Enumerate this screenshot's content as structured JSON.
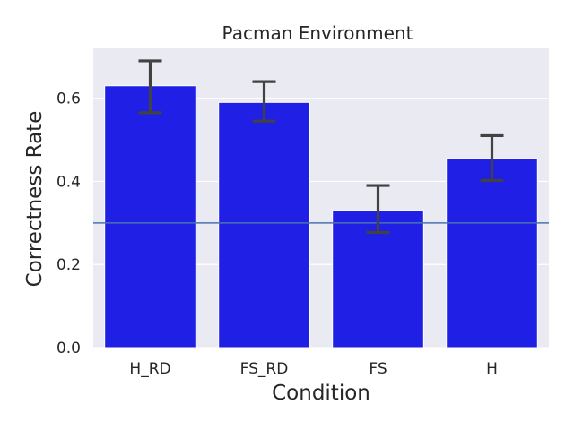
{
  "chart_data": {
    "type": "bar",
    "title": "Pacman Environment",
    "xlabel": "Condition",
    "ylabel": "Correctness Rate",
    "categories": [
      "H_RD",
      "FS_RD",
      "FS",
      "H"
    ],
    "values": [
      0.63,
      0.59,
      0.33,
      0.455
    ],
    "error_bars": [
      {
        "low": 0.565,
        "high": 0.69
      },
      {
        "low": 0.545,
        "high": 0.64
      },
      {
        "low": 0.277,
        "high": 0.39
      },
      {
        "low": 0.402,
        "high": 0.51
      }
    ],
    "reference_line": 0.3,
    "ylim": [
      0,
      0.72
    ],
    "yticks": [
      0.0,
      0.2,
      0.4,
      0.6
    ],
    "ytick_labels": [
      "0.0",
      "0.2",
      "0.4",
      "0.6"
    ],
    "grid": "horizontal",
    "colors": {
      "bar": "#1f1fe6",
      "background": "#eaeaf2",
      "grid": "#ffffff",
      "error_bar": "#424242",
      "reference_line": "#4c72b0"
    }
  }
}
